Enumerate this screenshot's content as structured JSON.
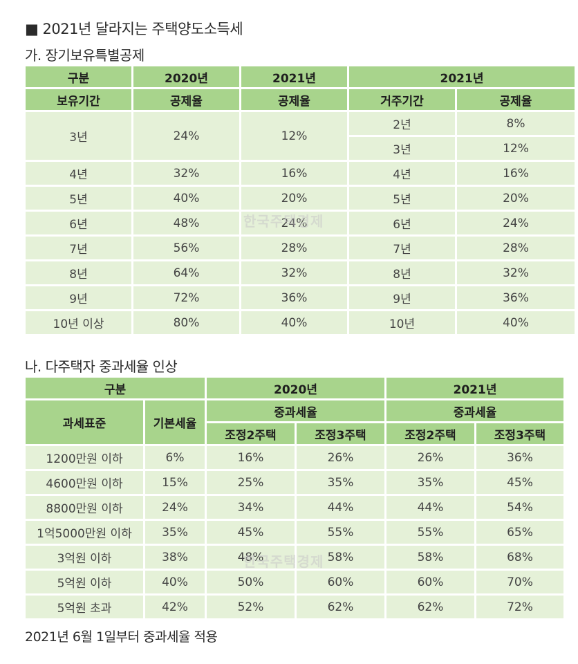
{
  "title": "■ 2021년 달라지는 주택양도소득세",
  "section_a": {
    "title": "가. 장기보유특별공제",
    "header1": [
      "구분",
      "2020년",
      "2021년",
      "2021년"
    ],
    "header2": [
      "보유기간",
      "공제율",
      "공제율",
      "거주기간",
      "공제율"
    ],
    "first_row": {
      "period": "3년",
      "rate_2020": "24%",
      "rate_2021": "12%"
    },
    "first_sub": [
      {
        "residence": "2년",
        "rate": "8%"
      },
      {
        "residence": "3년",
        "rate": "12%"
      }
    ],
    "rows": [
      [
        "4년",
        "32%",
        "16%",
        "4년",
        "16%"
      ],
      [
        "5년",
        "40%",
        "20%",
        "5년",
        "20%"
      ],
      [
        "6년",
        "48%",
        "24%",
        "6년",
        "24%"
      ],
      [
        "7년",
        "56%",
        "28%",
        "7년",
        "28%"
      ],
      [
        "8년",
        "64%",
        "32%",
        "8년",
        "32%"
      ],
      [
        "9년",
        "72%",
        "36%",
        "9년",
        "36%"
      ],
      [
        "10년 이상",
        "80%",
        "40%",
        "10년",
        "40%"
      ]
    ]
  },
  "section_b": {
    "title": "나. 다주택자 중과세율 인상",
    "header1": [
      "구분",
      "2020년",
      "2021년"
    ],
    "header2": [
      "과세표준",
      "기본세율",
      "중과세율",
      "중과세율"
    ],
    "header3": [
      "조정2주택",
      "조정3주택",
      "조정2주택",
      "조정3주택"
    ],
    "rows": [
      [
        "1200만원 이하",
        "6%",
        "16%",
        "26%",
        "26%",
        "36%"
      ],
      [
        "4600만원 이하",
        "15%",
        "25%",
        "35%",
        "35%",
        "45%"
      ],
      [
        "8800만원 이하",
        "24%",
        "34%",
        "44%",
        "44%",
        "54%"
      ],
      [
        "1억5000만원 이하",
        "35%",
        "45%",
        "55%",
        "55%",
        "65%"
      ],
      [
        "3억원 이하",
        "38%",
        "48%",
        "58%",
        "58%",
        "68%"
      ],
      [
        "5억원 이하",
        "40%",
        "50%",
        "60%",
        "60%",
        "70%"
      ],
      [
        "5억원 초과",
        "42%",
        "52%",
        "62%",
        "62%",
        "72%"
      ]
    ]
  },
  "footnote": "2021년 6월 1일부터 중과세율 적용",
  "watermark": "한국주택경제"
}
